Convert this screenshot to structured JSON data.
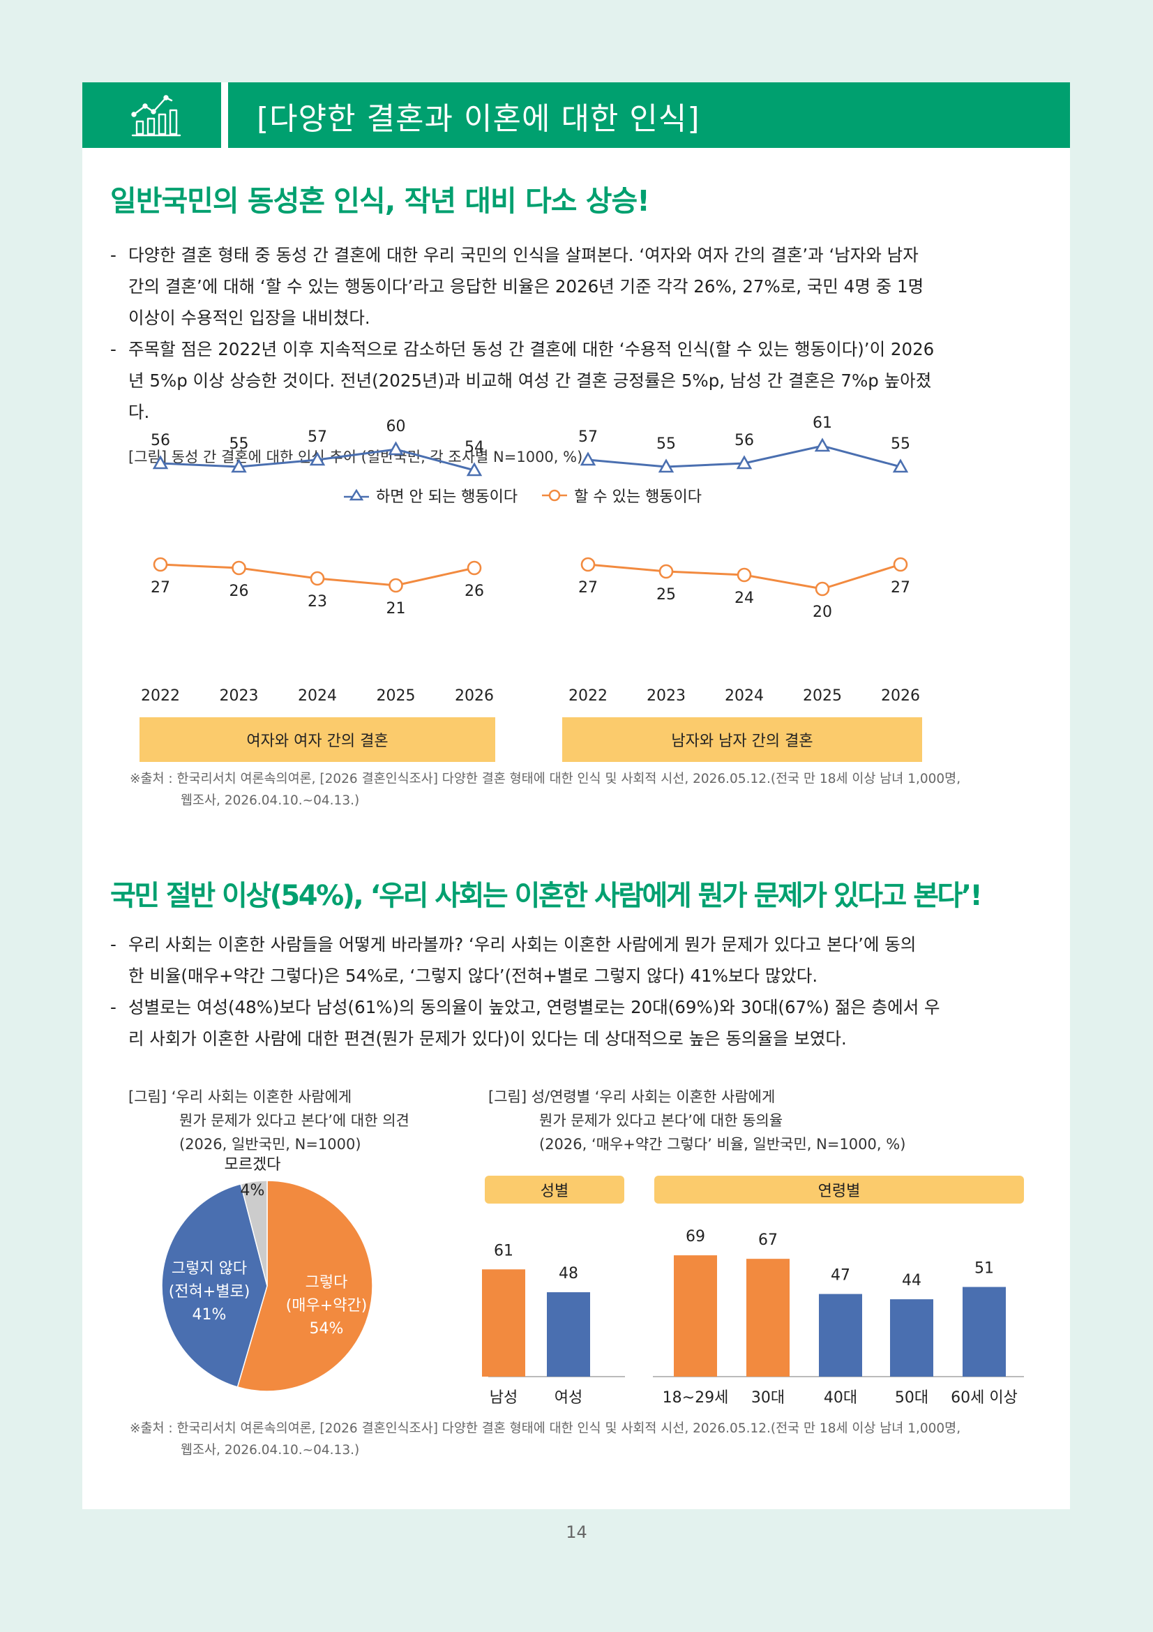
{
  "header": {
    "title": "[다양한 결혼과 이혼에 대한 인식]",
    "icon": "bar-chart-trend-icon",
    "accent_color": "#00a06f"
  },
  "section1": {
    "heading": "일반국민의 동성혼 인식, 작년 대비 다소 상승!",
    "bullets": [
      [
        "다양한 결혼 형태 중 동성 간 결혼에 대한 우리 국민의 인식을 살펴본다. ‘여자와 여자 간의 결혼’과 ‘남자와 남자",
        "간의 결혼’에 대해 ‘할 수 있는 행동이다’라고 응답한 비율은 2026년 기준 각각 26%, 27%로, 국민 4명 중 1명",
        "이상이 수용적인 입장을 내비쳤다."
      ],
      [
        "주목할 점은 2022년 이후 지속적으로 감소하던 동성 간 결혼에 대한 ‘수용적 인식(할 수 있는 행동이다)’이 2026",
        "년 5%p 이상 상승한 것이다. 전년(2025년)과 비교해 여성 간 결혼 긍정률은 5%p, 남성 간 결혼은 7%p 높아졌",
        "다."
      ]
    ],
    "figure_caption": "[그림] 동성 간 결혼에 대한 인식 추이 (일반국민, 각 조사별 N=1000, %)",
    "source_line1": "※출처 : 한국리서치 여론속의여론, [2026 결혼인식조사] 다양한 결혼 형태에 대한 인식 및 사회적 시선, 2026.05.12.(전국 만 18세 이상 남녀 1,000명,",
    "source_line2": "웹조사, 2026.04.10.~04.13.)"
  },
  "section2": {
    "heading": "국민 절반 이상(54%), ‘우리 사회는 이혼한 사람에게 뭔가 문제가 있다고 본다’!",
    "bullets": [
      [
        "우리 사회는 이혼한 사람들을 어떻게 바라볼까? ‘우리 사회는 이혼한 사람에게 뭔가 문제가 있다고 본다’에 동의",
        "한 비율(매우+약간 그렇다)은 54%로, ‘그렇지 않다’(전혀+별로 그렇지 않다) 41%보다 많았다."
      ],
      [
        "성별로는 여성(48%)보다 남성(61%)의 동의율이 높았고, 연령별로는 20대(69%)와 30대(67%) 젊은 층에서 우",
        "리 사회가 이혼한 사람에 대한 편견(뭔가 문제가 있다)이 있다는 데 상대적으로 높은 동의율을 보였다."
      ]
    ],
    "pie_caption": [
      "[그림] ‘우리 사회는 이혼한 사람에게",
      "뭔가 문제가 있다고 본다’에 대한 의견",
      "(2026, 일반국민, N=1000)"
    ],
    "bar_caption": [
      "[그림] 성/연령별 ‘우리 사회는 이혼한 사람에게",
      "뭔가 문제가 있다고 본다’에 대한 동의율",
      "(2026, ‘매우+약간 그렇다’ 비율, 일반국민, N=1000, %)"
    ],
    "source_line1": "※출처 : 한국리서치 여론속의여론, [2026 결혼인식조사] 다양한 결혼 형태에 대한 인식 및 사회적 시선, 2026.05.12.(전국 만 18세 이상 남녀 1,000명,",
    "source_line2": "웹조사, 2026.04.10.~04.13.)"
  },
  "page_number": "14",
  "chart_data": [
    {
      "type": "line",
      "x": [
        "2022",
        "2023",
        "2024",
        "2025",
        "2026"
      ],
      "series": [
        {
          "name": "하면 안 되는 행동이다",
          "values": [
            56,
            55,
            57,
            60,
            54
          ],
          "color": "#4a6fb0",
          "marker": "triangle"
        },
        {
          "name": "할 수 있는 행동이다",
          "values": [
            27,
            26,
            23,
            21,
            26
          ],
          "color": "#f28a3f",
          "marker": "circle"
        }
      ],
      "category_label": "여자와 여자 간의 결혼"
    },
    {
      "type": "line",
      "x": [
        "2022",
        "2023",
        "2024",
        "2025",
        "2026"
      ],
      "series": [
        {
          "name": "하면 안 되는 행동이다",
          "values": [
            57,
            55,
            56,
            61,
            55
          ],
          "color": "#4a6fb0",
          "marker": "triangle"
        },
        {
          "name": "할 수 있는 행동이다",
          "values": [
            27,
            25,
            24,
            20,
            27
          ],
          "color": "#f28a3f",
          "marker": "circle"
        }
      ],
      "category_label": "남자와 남자 간의 결혼"
    },
    {
      "type": "pie",
      "slices": [
        {
          "label": [
            "그렇다",
            "(매우+약간)",
            "54%"
          ],
          "value": 54,
          "color": "#f28a3f"
        },
        {
          "label": [
            "그렇지 않다",
            "(전혀+별로)",
            "41%"
          ],
          "value": 41,
          "color": "#4a6fb0"
        },
        {
          "label": [
            "모르겠다",
            "4%"
          ],
          "value": 4,
          "color": "#cccccc"
        }
      ]
    },
    {
      "type": "bar",
      "groups": [
        {
          "label": "성별",
          "categories": [
            "남성",
            "여성"
          ],
          "values": [
            61,
            48
          ],
          "colors": [
            "#f28a3f",
            "#4a6fb0"
          ]
        },
        {
          "label": "연령별",
          "categories": [
            "18~29세",
            "30대",
            "40대",
            "50대",
            "60세 이상"
          ],
          "values": [
            69,
            67,
            47,
            44,
            51
          ],
          "colors": [
            "#f28a3f",
            "#f28a3f",
            "#4a6fb0",
            "#4a6fb0",
            "#4a6fb0"
          ]
        }
      ]
    }
  ]
}
